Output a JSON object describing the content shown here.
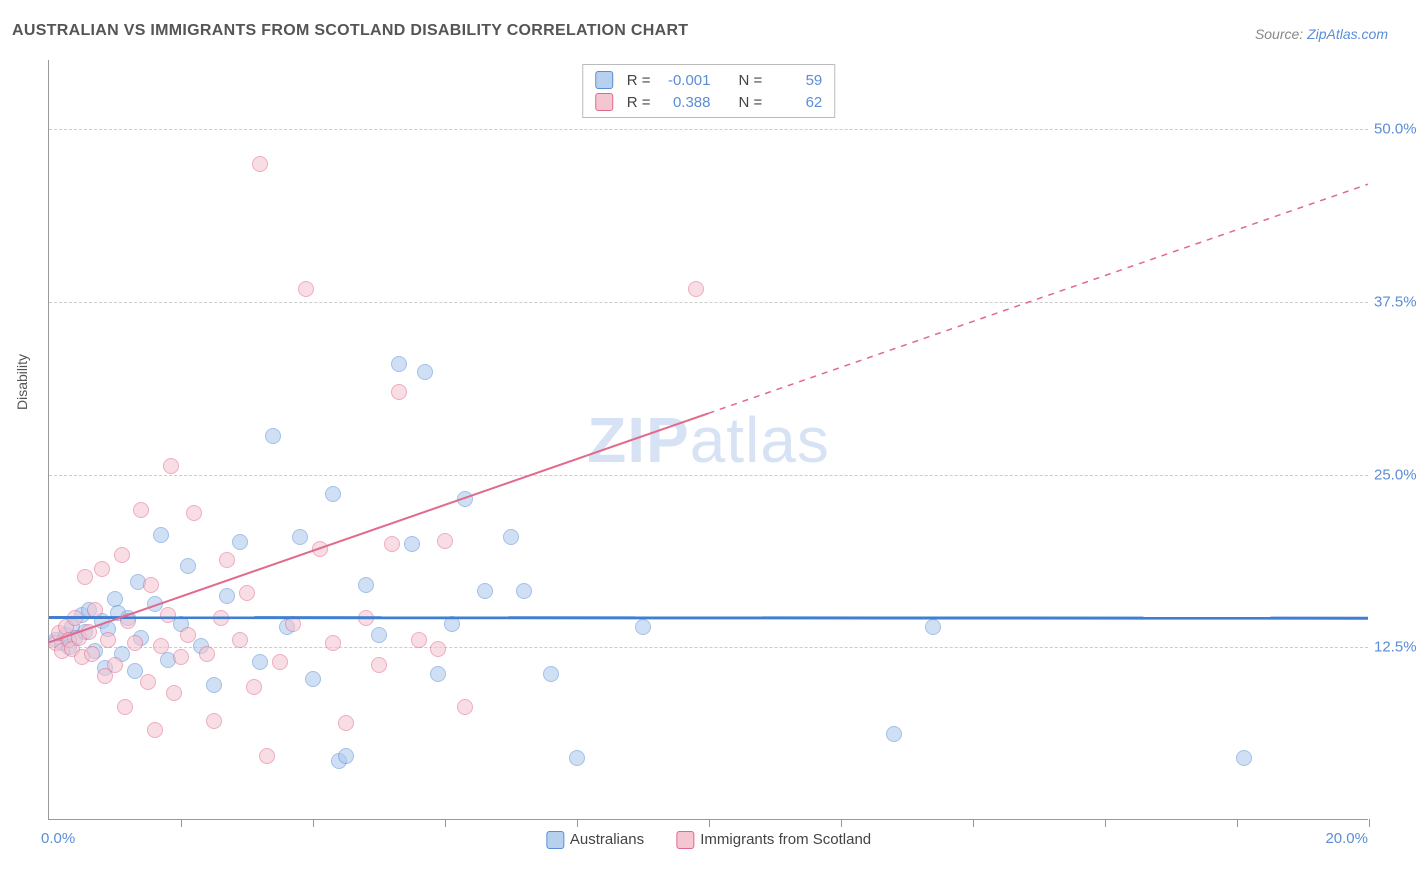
{
  "title": "AUSTRALIAN VS IMMIGRANTS FROM SCOTLAND DISABILITY CORRELATION CHART",
  "source": {
    "label": "Source: ",
    "site": "ZipAtlas.com"
  },
  "watermark": {
    "bold": "ZIP",
    "light": "atlas"
  },
  "y_axis_label": "Disability",
  "chart": {
    "type": "scatter",
    "xlim": [
      0,
      20
    ],
    "ylim": [
      0,
      55
    ],
    "x_ticks": [
      2,
      4,
      6,
      8,
      10,
      12,
      14,
      16,
      18,
      20
    ],
    "x_origin_label": "0.0%",
    "x_max_label": "20.0%",
    "y_grid": [
      {
        "value": 12.5,
        "label": "12.5%"
      },
      {
        "value": 25.0,
        "label": "25.0%"
      },
      {
        "value": 37.5,
        "label": "37.5%"
      },
      {
        "value": 50.0,
        "label": "50.0%"
      }
    ],
    "background_color": "#ffffff",
    "grid_color": "#cccccc",
    "axis_color": "#999999",
    "marker_radius": 8,
    "marker_opacity": 0.55,
    "series": [
      {
        "name": "Australians",
        "color_fill": "#a9c8ec",
        "color_stroke": "#5b8dd6",
        "swatch_bg": "#b7d0ed",
        "swatch_border": "#5b8dd6",
        "trend": {
          "color": "#3f7ed1",
          "width": 3,
          "y_start": 14.6,
          "y_end": 14.55,
          "x_solid_end": 20
        },
        "r": "-0.001",
        "n": "59",
        "points": [
          [
            0.1,
            13.0
          ],
          [
            0.2,
            12.8
          ],
          [
            0.25,
            13.4
          ],
          [
            0.3,
            12.5
          ],
          [
            0.35,
            14.0
          ],
          [
            0.4,
            13.2
          ],
          [
            0.5,
            14.8
          ],
          [
            0.55,
            13.6
          ],
          [
            0.6,
            15.2
          ],
          [
            0.7,
            12.2
          ],
          [
            0.8,
            14.4
          ],
          [
            0.85,
            11.0
          ],
          [
            0.9,
            13.8
          ],
          [
            1.0,
            16.0
          ],
          [
            1.05,
            15.0
          ],
          [
            1.1,
            12.0
          ],
          [
            1.2,
            14.6
          ],
          [
            1.3,
            10.8
          ],
          [
            1.35,
            17.2
          ],
          [
            1.4,
            13.2
          ],
          [
            1.6,
            15.6
          ],
          [
            1.7,
            20.6
          ],
          [
            1.8,
            11.6
          ],
          [
            2.0,
            14.2
          ],
          [
            2.1,
            18.4
          ],
          [
            2.3,
            12.6
          ],
          [
            2.5,
            9.8
          ],
          [
            2.7,
            16.2
          ],
          [
            2.9,
            20.1
          ],
          [
            3.2,
            11.4
          ],
          [
            3.4,
            27.8
          ],
          [
            3.6,
            14.0
          ],
          [
            3.8,
            20.5
          ],
          [
            4.0,
            10.2
          ],
          [
            4.3,
            23.6
          ],
          [
            4.4,
            4.3
          ],
          [
            4.5,
            4.6
          ],
          [
            4.8,
            17.0
          ],
          [
            5.0,
            13.4
          ],
          [
            5.3,
            33.0
          ],
          [
            5.5,
            20.0
          ],
          [
            5.7,
            32.4
          ],
          [
            5.9,
            10.6
          ],
          [
            6.1,
            14.2
          ],
          [
            6.3,
            23.2
          ],
          [
            6.6,
            16.6
          ],
          [
            7.0,
            20.5
          ],
          [
            7.2,
            16.6
          ],
          [
            7.6,
            10.6
          ],
          [
            8.0,
            4.5
          ],
          [
            9.0,
            14.0
          ],
          [
            12.8,
            6.2
          ],
          [
            13.4,
            14.0
          ],
          [
            18.1,
            4.5
          ]
        ]
      },
      {
        "name": "Immigrants from Scotland",
        "color_fill": "#f5c2cf",
        "color_stroke": "#e16a8b",
        "swatch_bg": "#f4c6d2",
        "swatch_border": "#e16a8b",
        "trend": {
          "color": "#e16a8b",
          "width": 2,
          "y_start": 12.8,
          "y_end": 46.0,
          "x_solid_end": 10
        },
        "r": "0.388",
        "n": "62",
        "points": [
          [
            0.1,
            12.8
          ],
          [
            0.15,
            13.5
          ],
          [
            0.2,
            12.2
          ],
          [
            0.25,
            14.0
          ],
          [
            0.3,
            13.0
          ],
          [
            0.35,
            12.4
          ],
          [
            0.4,
            14.6
          ],
          [
            0.45,
            13.2
          ],
          [
            0.5,
            11.8
          ],
          [
            0.55,
            17.6
          ],
          [
            0.6,
            13.6
          ],
          [
            0.65,
            12.0
          ],
          [
            0.7,
            15.2
          ],
          [
            0.8,
            18.2
          ],
          [
            0.85,
            10.4
          ],
          [
            0.9,
            13.0
          ],
          [
            1.0,
            11.2
          ],
          [
            1.1,
            19.2
          ],
          [
            1.15,
            8.2
          ],
          [
            1.2,
            14.4
          ],
          [
            1.3,
            12.8
          ],
          [
            1.4,
            22.4
          ],
          [
            1.5,
            10.0
          ],
          [
            1.55,
            17.0
          ],
          [
            1.6,
            6.5
          ],
          [
            1.7,
            12.6
          ],
          [
            1.8,
            14.8
          ],
          [
            1.85,
            25.6
          ],
          [
            1.9,
            9.2
          ],
          [
            2.0,
            11.8
          ],
          [
            2.1,
            13.4
          ],
          [
            2.2,
            22.2
          ],
          [
            2.4,
            12.0
          ],
          [
            2.5,
            7.2
          ],
          [
            2.6,
            14.6
          ],
          [
            2.7,
            18.8
          ],
          [
            2.9,
            13.0
          ],
          [
            3.0,
            16.4
          ],
          [
            3.1,
            9.6
          ],
          [
            3.2,
            47.5
          ],
          [
            3.3,
            4.6
          ],
          [
            3.5,
            11.4
          ],
          [
            3.7,
            14.2
          ],
          [
            3.9,
            38.4
          ],
          [
            4.1,
            19.6
          ],
          [
            4.3,
            12.8
          ],
          [
            4.5,
            7.0
          ],
          [
            4.8,
            14.6
          ],
          [
            5.0,
            11.2
          ],
          [
            5.2,
            20.0
          ],
          [
            5.3,
            31.0
          ],
          [
            5.6,
            13.0
          ],
          [
            5.9,
            12.4
          ],
          [
            6.0,
            20.2
          ],
          [
            6.3,
            8.2
          ],
          [
            9.8,
            38.4
          ]
        ]
      }
    ]
  },
  "legend_bottom": [
    {
      "swatch_bg": "#b7d0ed",
      "swatch_border": "#5b8dd6",
      "label": "Australians"
    },
    {
      "swatch_bg": "#f4c6d2",
      "swatch_border": "#e16a8b",
      "label": "Immigrants from Scotland"
    }
  ],
  "legend_top": {
    "rows": [
      {
        "swatch_bg": "#b7d0ed",
        "swatch_border": "#5b8dd6",
        "r_label": "R = ",
        "r": "-0.001",
        "n_label": "N = ",
        "n": "59"
      },
      {
        "swatch_bg": "#f4c6d2",
        "swatch_border": "#e16a8b",
        "r_label": "R = ",
        "r": "0.388",
        "n_label": "N = ",
        "n": "62"
      }
    ]
  }
}
